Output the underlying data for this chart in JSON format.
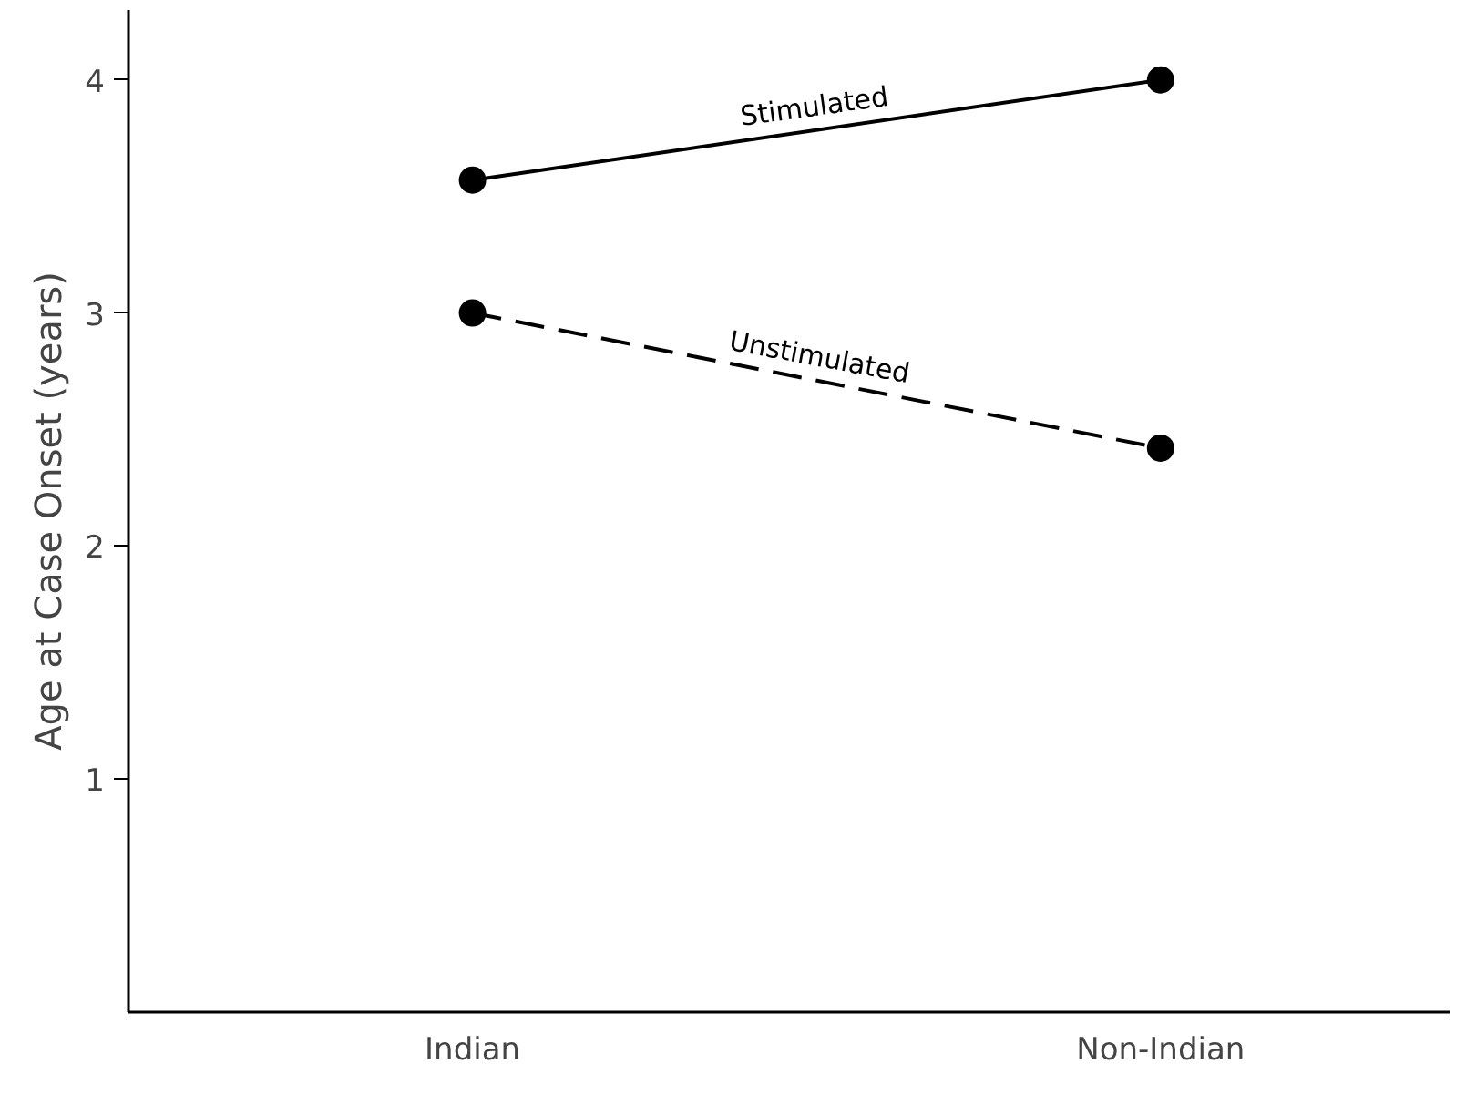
{
  "chart_data": {
    "type": "line",
    "ylabel": "Age at Case Onset (years)",
    "categories": [
      "Indian",
      "Non-Indian"
    ],
    "series": [
      {
        "name": "Stimulated",
        "color": "#000000",
        "values": [
          3.57,
          4.0
        ],
        "line_style": "solid"
      },
      {
        "name": "Unstimulated",
        "color": "#000000",
        "values": [
          3.0,
          2.42
        ],
        "line_style": "dashed"
      }
    ],
    "ylim": [
      0,
      4.3
    ],
    "yticks": [
      1,
      2,
      3,
      4
    ],
    "grid": false,
    "marker": "circle"
  }
}
